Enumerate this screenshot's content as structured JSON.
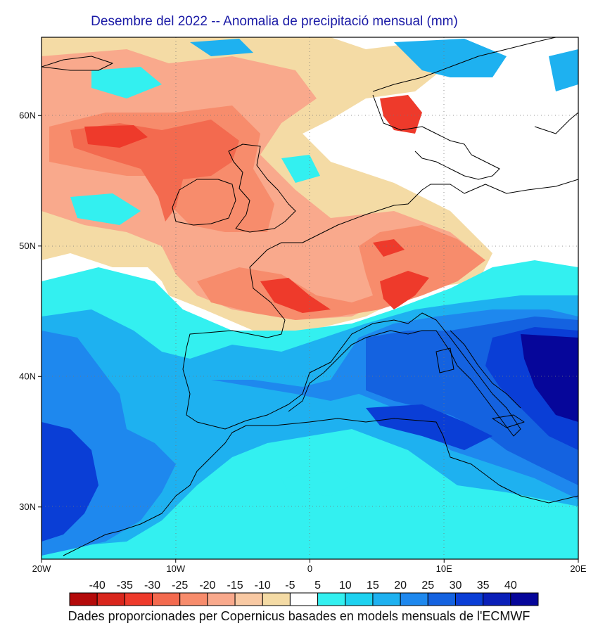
{
  "title": "Desembre del 2022 -- Anomalia de precipitació mensual (mm)",
  "footer": "Dades proporcionades per Copernicus basades en models mensuals de l'ECMWF",
  "lat_ticks": [
    {
      "value": 60,
      "label": "60N"
    },
    {
      "value": 50,
      "label": "50N"
    },
    {
      "value": 40,
      "label": "40N"
    },
    {
      "value": 30,
      "label": "30N"
    }
  ],
  "lon_ticks": [
    {
      "value": -20,
      "label": "20W"
    },
    {
      "value": -10,
      "label": "10W"
    },
    {
      "value": 0,
      "label": "0"
    },
    {
      "value": 10,
      "label": "10E"
    },
    {
      "value": 20,
      "label": "20E"
    }
  ],
  "map_extent": {
    "lon": [
      -20,
      20
    ],
    "lat": [
      26,
      66
    ]
  },
  "legend": {
    "labels": [
      "-40",
      "-35",
      "-30",
      "-25",
      "-20",
      "-15",
      "-10",
      "-5",
      "5",
      "10",
      "15",
      "20",
      "25",
      "30",
      "35",
      "40"
    ],
    "colors": [
      "#b40a0a",
      "#d9261c",
      "#ee3a2b",
      "#f36a4f",
      "#f78c6c",
      "#f9a98c",
      "#f8c9a3",
      "#f4dba5",
      "#ffffff",
      "#33f0f0",
      "#1ed2f0",
      "#1eb1f0",
      "#1e88ee",
      "#1462e0",
      "#0a3ed6",
      "#0a1fb8",
      "#06069a"
    ]
  },
  "anomaly_regions": [
    {
      "name": "north-atlantic-dry",
      "color": "#f9a98c"
    },
    {
      "name": "scotland-ireland-dry",
      "color": "#f36a4f"
    },
    {
      "name": "france-dry",
      "color": "#f78c6c"
    },
    {
      "name": "alps-dry",
      "color": "#ee3a2b"
    },
    {
      "name": "mediterranean-wet",
      "color": "#1462e0"
    },
    {
      "name": "tyrrhenian-wet",
      "color": "#06069a"
    },
    {
      "name": "atlantic-subtropical-wet",
      "color": "#1e88ee"
    },
    {
      "name": "iberia-wet",
      "color": "#1eb1f0"
    }
  ]
}
